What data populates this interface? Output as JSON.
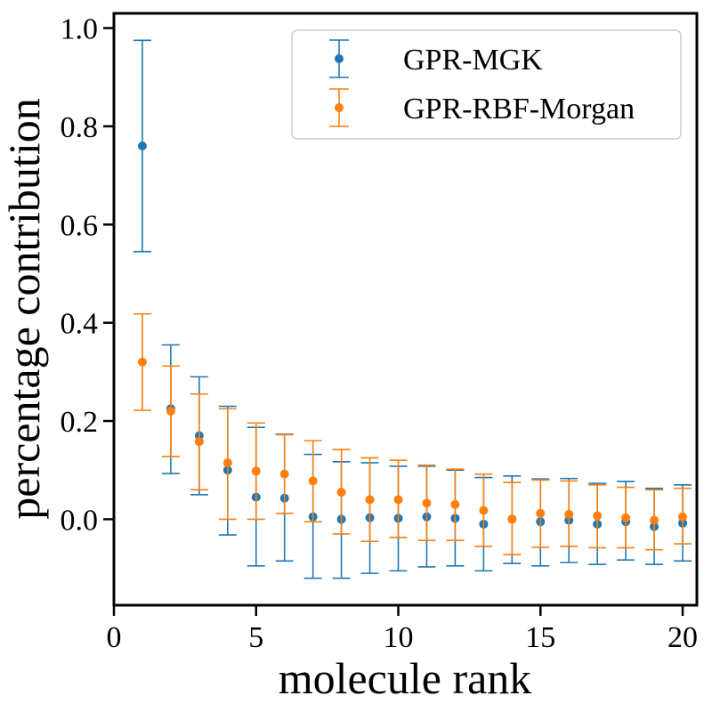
{
  "chart_data": {
    "type": "scatter",
    "xlabel": "molecule rank",
    "ylabel": "percentage contribution",
    "xlim": [
      0,
      20.5
    ],
    "ylim": [
      -0.175,
      1.03
    ],
    "xticks": [
      0,
      5,
      10,
      15,
      20
    ],
    "xtick_labels": [
      "0",
      "5",
      "10",
      "15",
      "20"
    ],
    "yticks": [
      0.0,
      0.2,
      0.4,
      0.6,
      0.8,
      1.0
    ],
    "ytick_labels": [
      "0.0",
      "0.2",
      "0.4",
      "0.6",
      "0.8",
      "1.0"
    ],
    "grid": false,
    "legend_position": "top-right",
    "error_bars": true,
    "x": [
      1,
      2,
      3,
      4,
      5,
      6,
      7,
      8,
      9,
      10,
      11,
      12,
      13,
      14,
      15,
      16,
      17,
      18,
      19,
      20
    ],
    "series": [
      {
        "name": "GPR-MGK",
        "color": "#1f77b4",
        "values": [
          0.76,
          0.225,
          0.17,
          0.1,
          0.045,
          0.043,
          0.005,
          0.0,
          0.003,
          0.002,
          0.005,
          0.002,
          -0.01,
          0.0,
          -0.005,
          -0.002,
          -0.01,
          -0.005,
          -0.015,
          -0.008
        ],
        "lower": [
          0.545,
          0.093,
          0.05,
          -0.032,
          -0.095,
          -0.085,
          -0.12,
          -0.12,
          -0.11,
          -0.105,
          -0.097,
          -0.095,
          -0.105,
          -0.09,
          -0.095,
          -0.088,
          -0.092,
          -0.083,
          -0.092,
          -0.085
        ],
        "upper": [
          0.975,
          0.355,
          0.29,
          0.23,
          0.187,
          0.173,
          0.132,
          0.117,
          0.115,
          0.108,
          0.108,
          0.1,
          0.085,
          0.088,
          0.082,
          0.083,
          0.073,
          0.077,
          0.063,
          0.07
        ]
      },
      {
        "name": "GPR-RBF-Morgan",
        "color": "#ff7f0e",
        "values": [
          0.32,
          0.22,
          0.158,
          0.115,
          0.098,
          0.092,
          0.078,
          0.055,
          0.04,
          0.04,
          0.033,
          0.03,
          0.018,
          0.0,
          0.012,
          0.01,
          0.007,
          0.003,
          -0.002,
          0.005
        ],
        "lower": [
          0.222,
          0.128,
          0.06,
          0.0,
          0.0,
          0.012,
          -0.005,
          -0.03,
          -0.045,
          -0.037,
          -0.043,
          -0.043,
          -0.055,
          -0.072,
          -0.057,
          -0.055,
          -0.058,
          -0.058,
          -0.062,
          -0.05
        ],
        "upper": [
          0.418,
          0.312,
          0.255,
          0.225,
          0.196,
          0.172,
          0.16,
          0.142,
          0.125,
          0.12,
          0.11,
          0.102,
          0.092,
          0.075,
          0.08,
          0.078,
          0.07,
          0.065,
          0.06,
          0.063
        ]
      }
    ]
  }
}
